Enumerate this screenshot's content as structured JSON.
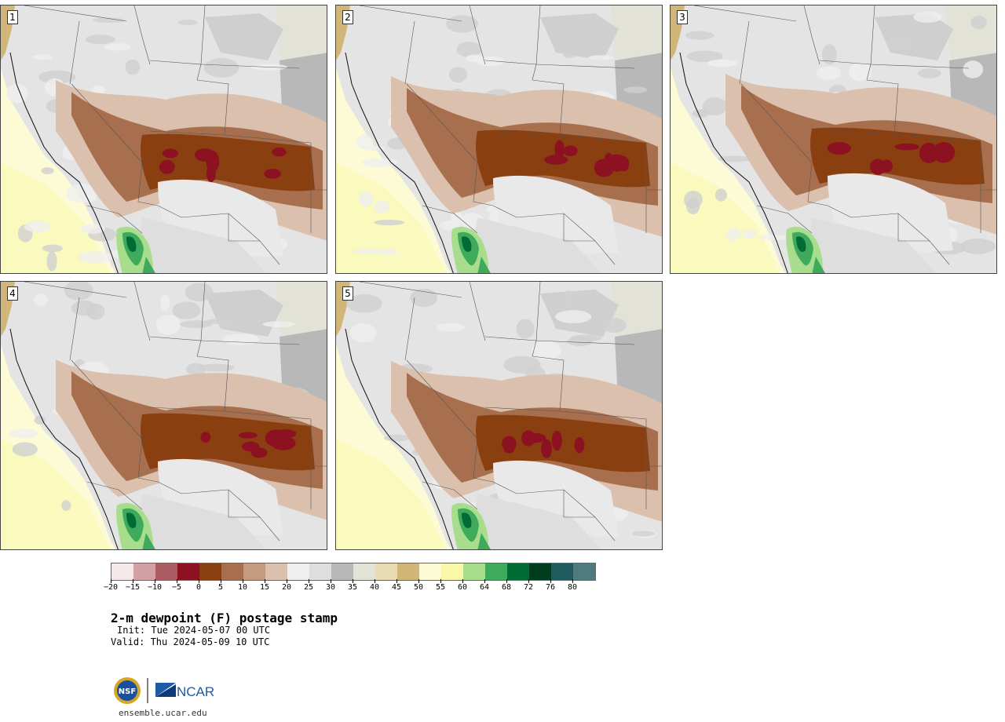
{
  "panels": [
    {
      "label": "1"
    },
    {
      "label": "2"
    },
    {
      "label": "3"
    },
    {
      "label": "4"
    },
    {
      "label": "5"
    }
  ],
  "colorbar": {
    "colors": [
      "#f5e8e8",
      "#d3a0a5",
      "#ad5b62",
      "#8c1221",
      "#8a3f10",
      "#a86f4e",
      "#c49a80",
      "#dcc0ae",
      "#efefef",
      "#dedede",
      "#b8b8b8",
      "#e2e2d6",
      "#e8dbb2",
      "#d1b67a",
      "#fdfbd5",
      "#f8f8a8",
      "#a8dd8e",
      "#3faa5c",
      "#006b33",
      "#003d1e",
      "#1e5a5e",
      "#4f7a7e"
    ],
    "ticks": [
      "−20",
      "−15",
      "−10",
      "−5",
      "0",
      "5",
      "10",
      "15",
      "20",
      "25",
      "30",
      "35",
      "40",
      "45",
      "50",
      "55",
      "60",
      "64",
      "68",
      "72",
      "76",
      "80"
    ]
  },
  "title": "2-m dewpoint (F) postage stamp",
  "init": "Init: Tue 2024-05-07 00 UTC",
  "valid": "Valid: Thu 2024-05-09 10 UTC",
  "logo": {
    "nsf": "NSF",
    "ncar": "NCAR"
  },
  "site": "ensemble.ucar.edu"
}
